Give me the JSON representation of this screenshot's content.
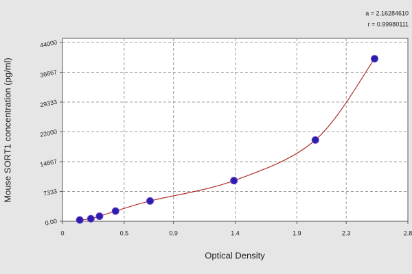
{
  "chart_data": {
    "type": "scatter",
    "xlabel": "Optical Density",
    "ylabel": "Mouse SORT1 concentration (pg/ml)",
    "annotations": [
      "a = 2.16284610",
      "r = 0.99980111"
    ],
    "x": [
      0.14,
      0.23,
      0.3,
      0.43,
      0.71,
      1.39,
      2.05,
      2.53
    ],
    "series": [
      {
        "color": "#2a1fa8",
        "values": [
          312,
          625,
          1250,
          2500,
          5000,
          10000,
          20000,
          40000
        ]
      }
    ],
    "fit_color": "#b0302c",
    "xlim": [
      0,
      2.8
    ],
    "xticks": [
      0,
      0.5,
      0.9,
      1.4,
      1.9,
      2.3,
      2.8
    ],
    "ylim": [
      0,
      44000
    ],
    "yticks": [
      {
        "value": 0,
        "label": "0.00"
      },
      7333,
      14667,
      22000,
      29333,
      36667,
      44000
    ],
    "grid": true
  }
}
